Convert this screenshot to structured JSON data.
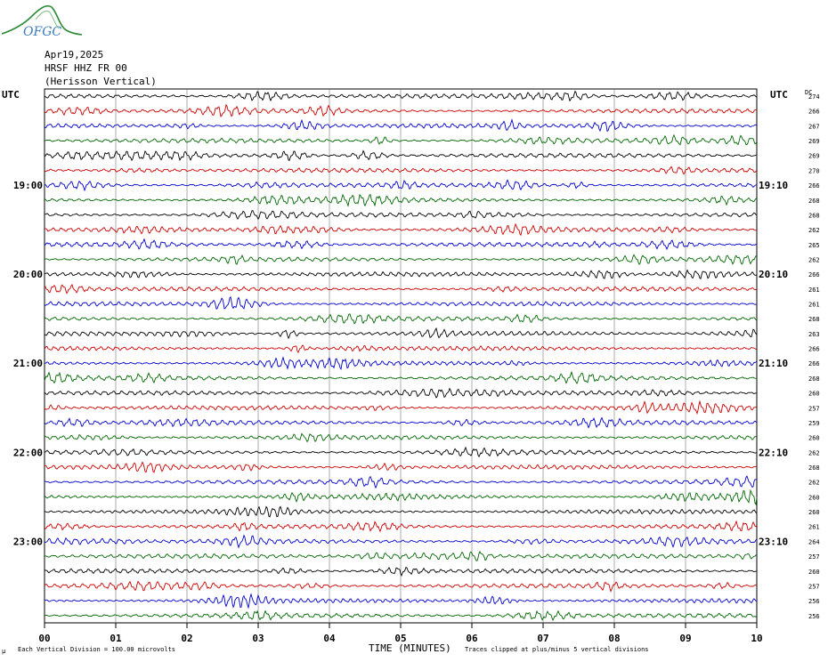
{
  "logo": {
    "text": "OFGC",
    "colors": {
      "hill": "#2e8b3a",
      "text": "#3a7bbf"
    }
  },
  "header": {
    "date": "Apr19,2025",
    "station": "HRSF HHZ FR 00",
    "site": "(Herisson Vertical)"
  },
  "labels": {
    "utc_left": "UTC",
    "utc_right": "UTC",
    "dc_header": "DC"
  },
  "footer": {
    "scale_note": "Each Vertical Division =  100.00 microvolts",
    "clip_note": "Traces clipped at plus/minus 5 vertical divisions",
    "corner_mark": "μ"
  },
  "chart_data": {
    "type": "line",
    "title": "",
    "xlabel": "TIME (MINUTES)",
    "ylabel": "",
    "xlim": [
      0,
      10
    ],
    "x_ticks": [
      "00",
      "01",
      "02",
      "03",
      "04",
      "05",
      "06",
      "07",
      "08",
      "09",
      "10"
    ],
    "grid": true,
    "trace_colors": [
      "#000000",
      "#cc0000",
      "#0000cc",
      "#006600"
    ],
    "left_time_labels": [
      {
        "row": 6,
        "label": "19:00"
      },
      {
        "row": 12,
        "label": "20:00"
      },
      {
        "row": 18,
        "label": "21:00"
      },
      {
        "row": 24,
        "label": "22:00"
      },
      {
        "row": 30,
        "label": "23:00"
      }
    ],
    "right_time_labels": [
      {
        "row": 6,
        "label": "19:10"
      },
      {
        "row": 12,
        "label": "20:10"
      },
      {
        "row": 18,
        "label": "21:10"
      },
      {
        "row": 24,
        "label": "22:10"
      },
      {
        "row": 30,
        "label": "23:10"
      }
    ],
    "dc_offsets": [
      274,
      266,
      267,
      269,
      269,
      270,
      266,
      268,
      268,
      262,
      265,
      262,
      266,
      261,
      261,
      268,
      263,
      266,
      266,
      268,
      260,
      257,
      259,
      260,
      262,
      268,
      262,
      260,
      260,
      261,
      264,
      257,
      260,
      257,
      256,
      256
    ]
  }
}
